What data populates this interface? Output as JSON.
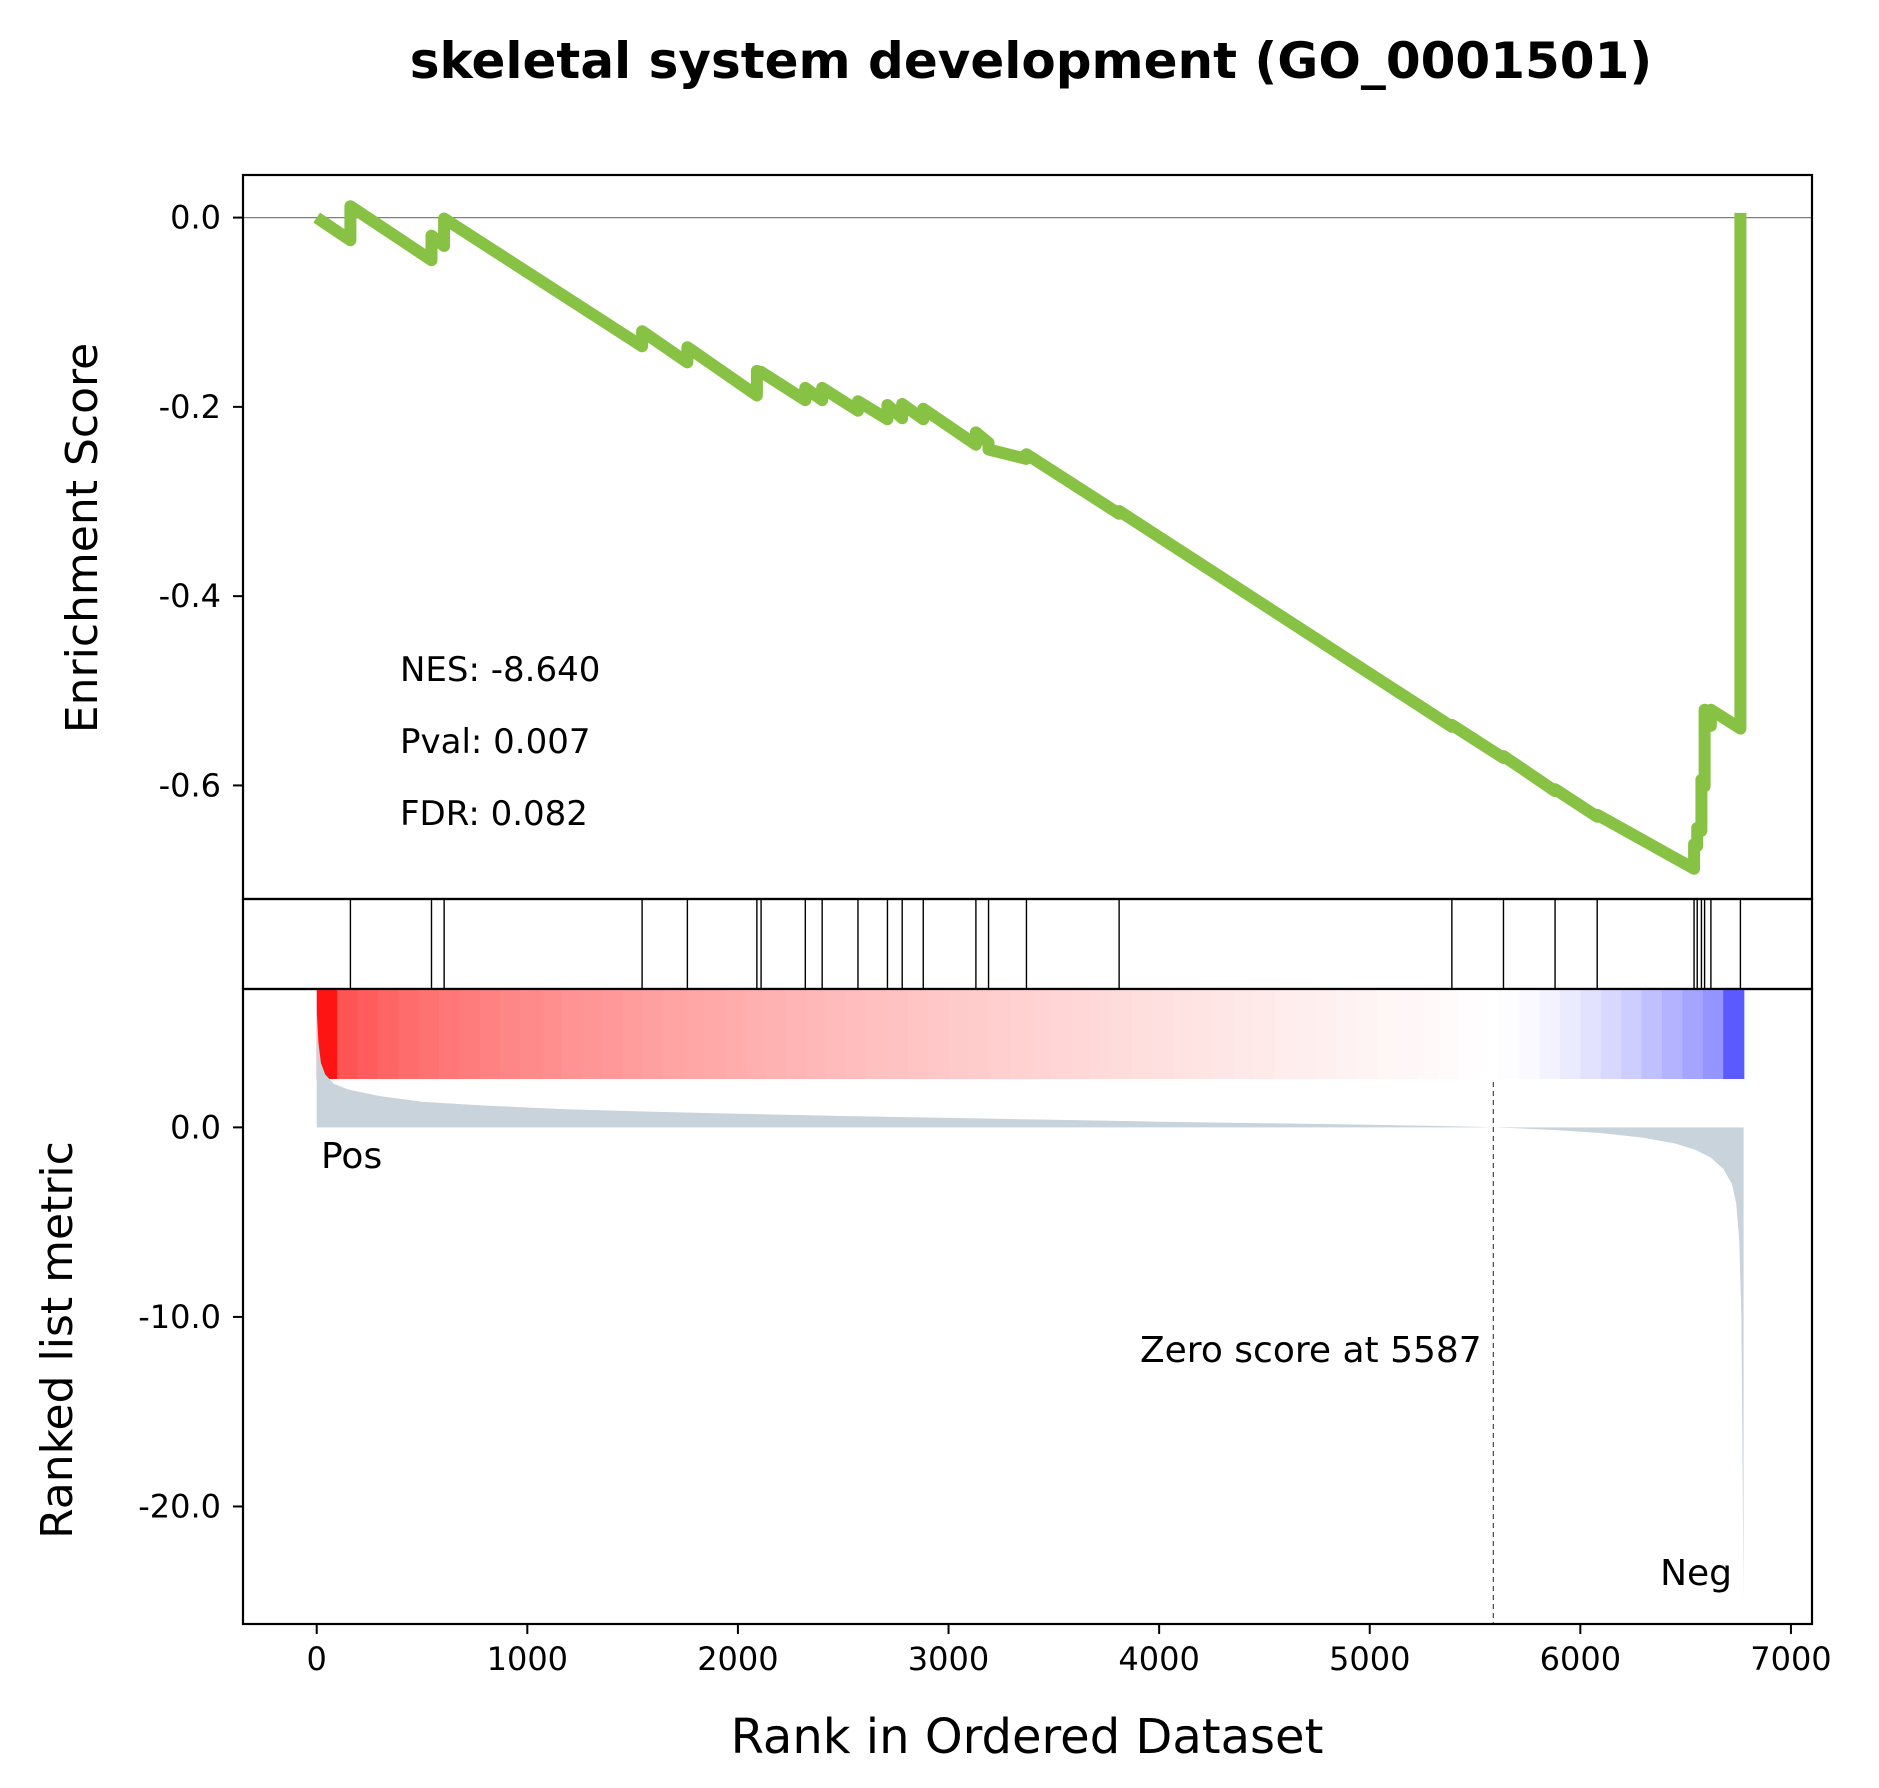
{
  "chart_data": {
    "type": "line",
    "title": "skeletal system development (GO_0001501)",
    "xlabel": "Rank in Ordered Dataset",
    "xlim": [
      -350,
      7100
    ],
    "x_ticks": [
      "0",
      "1000",
      "2000",
      "3000",
      "4000",
      "5000",
      "6000",
      "7000"
    ],
    "x_tick_values": [
      0,
      1000,
      2000,
      3000,
      4000,
      5000,
      6000,
      7000
    ],
    "colors": {
      "es_line": "#88c244",
      "metric_fill": "#c9d3db",
      "pos": "#ff0000",
      "neg": "#0000ff",
      "zero_line": "#808080"
    },
    "enrichment": {
      "ylabel": "Enrichment Score",
      "ylim": [
        -0.72,
        0.045
      ],
      "y_ticks": [
        "0.0",
        "-0.2",
        "-0.4",
        "-0.6"
      ],
      "y_tick_values": [
        0.0,
        -0.2,
        -0.4,
        -0.6
      ],
      "nes_text": "NES: -8.640",
      "pval_text": "Pval: 0.007",
      "fdr_text": "FDR: 0.082",
      "x": [
        0,
        160,
        160,
        545,
        545,
        605,
        605,
        1545,
        1545,
        1760,
        1760,
        2090,
        2090,
        2110,
        2110,
        2320,
        2320,
        2400,
        2400,
        2570,
        2570,
        2710,
        2710,
        2780,
        2780,
        2880,
        2880,
        3130,
        3130,
        3190,
        3190,
        3370,
        3370,
        3810,
        3810,
        5390,
        5390,
        5635,
        5635,
        5880,
        5880,
        6080,
        6080,
        6540,
        6540,
        6555,
        6555,
        6575,
        6575,
        6590,
        6590,
        6620,
        6620,
        6760,
        6760
      ],
      "y": [
        0.0,
        -0.024,
        0.012,
        -0.045,
        -0.019,
        -0.03,
        -0.001,
        -0.136,
        -0.12,
        -0.153,
        -0.137,
        -0.188,
        -0.162,
        -0.165,
        -0.163,
        -0.193,
        -0.18,
        -0.193,
        -0.18,
        -0.204,
        -0.194,
        -0.213,
        -0.198,
        -0.212,
        -0.197,
        -0.213,
        -0.202,
        -0.24,
        -0.227,
        -0.238,
        -0.245,
        -0.255,
        -0.25,
        -0.313,
        -0.31,
        -0.538,
        -0.536,
        -0.571,
        -0.569,
        -0.606,
        -0.604,
        -0.633,
        -0.631,
        -0.688,
        -0.662,
        -0.664,
        -0.645,
        -0.648,
        -0.594,
        -0.601,
        -0.52,
        -0.537,
        -0.52,
        -0.54,
        0.005
      ]
    },
    "hits": [
      160,
      545,
      605,
      1545,
      1760,
      2090,
      2110,
      2320,
      2400,
      2570,
      2710,
      2780,
      2880,
      3130,
      3190,
      3370,
      3810,
      5390,
      5635,
      5880,
      6080,
      6540,
      6555,
      6575,
      6590,
      6620,
      6760
    ],
    "ranked_metric": {
      "ylabel": "Ranked list metric",
      "ylim": [
        -26.2,
        7.3
      ],
      "y_ticks": [
        "0.0",
        "-10.0",
        "-20.0"
      ],
      "y_tick_values": [
        0.0,
        -10.0,
        -20.0
      ],
      "pos_label": "Pos",
      "neg_label": "Neg",
      "zero_score_text": "Zero score at 5587",
      "zero_score_rank": 5587,
      "max_rank": 6775,
      "curve_x": [
        0,
        8,
        20,
        40,
        80,
        150,
        300,
        500,
        800,
        1200,
        1600,
        2000,
        2500,
        3000,
        3500,
        4000,
        4500,
        5000,
        5300,
        5500,
        5587,
        5700,
        5900,
        6100,
        6300,
        6450,
        6550,
        6620,
        6680,
        6720,
        6740,
        6755,
        6765,
        6775
      ],
      "curve_y": [
        6.2,
        4.5,
        3.4,
        2.8,
        2.3,
        2.0,
        1.65,
        1.35,
        1.15,
        0.95,
        0.82,
        0.72,
        0.6,
        0.5,
        0.4,
        0.3,
        0.22,
        0.14,
        0.08,
        0.03,
        0.0,
        -0.05,
        -0.15,
        -0.3,
        -0.55,
        -0.85,
        -1.2,
        -1.6,
        -2.2,
        -3.0,
        -4.0,
        -6.0,
        -10.0,
        -25.0
      ]
    }
  }
}
